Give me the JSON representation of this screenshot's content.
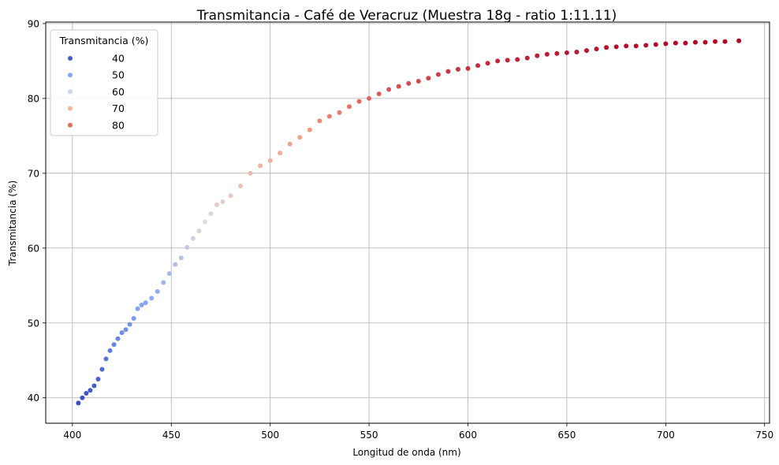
{
  "chart_data": {
    "type": "scatter",
    "title": "Transmitancia - Café de Veracruz (Muestra 18g - ratio 1:11.11)",
    "xlabel": "Longitud de onda (nm)",
    "ylabel": "Transmitancia (%)",
    "xlim": [
      386.5,
      752.5
    ],
    "ylim": [
      36.6,
      90.2
    ],
    "xticks": [
      400,
      450,
      500,
      550,
      600,
      650,
      700,
      750
    ],
    "yticks": [
      40,
      50,
      60,
      70,
      80,
      90
    ],
    "grid": true,
    "colormap": "coolwarm",
    "color_range": [
      39.3,
      87.7
    ],
    "legend": {
      "title": "Transmitancia (%)",
      "position": "upper-left",
      "entries": [
        {
          "label": "40",
          "value": 40,
          "color": "#4a5fcf"
        },
        {
          "label": "50",
          "value": 50,
          "color": "#84a5f4"
        },
        {
          "label": "60",
          "value": 60,
          "color": "#c8d6e8"
        },
        {
          "label": "70",
          "value": 70,
          "color": "#f3b697"
        },
        {
          "label": "80",
          "value": 80,
          "color": "#dd6f54"
        }
      ]
    },
    "series": [
      {
        "x": [
          403,
          405,
          407,
          409,
          411,
          413,
          415,
          417,
          419,
          421,
          423,
          425,
          427,
          429,
          431,
          433,
          435,
          437,
          440,
          443,
          446,
          449,
          452,
          455,
          458,
          461,
          464,
          467,
          470,
          473,
          476,
          480,
          485,
          490,
          495,
          500,
          505,
          510,
          515,
          520,
          525,
          530,
          535,
          540,
          545,
          550,
          555,
          560,
          565,
          570,
          575,
          580,
          585,
          590,
          595,
          600,
          605,
          610,
          615,
          620,
          625,
          630,
          635,
          640,
          645,
          650,
          655,
          660,
          665,
          670,
          675,
          680,
          685,
          690,
          695,
          700,
          705,
          710,
          715,
          720,
          725,
          730,
          737
        ],
        "y": [
          39.3,
          40.0,
          40.6,
          41.0,
          41.6,
          42.5,
          43.8,
          45.2,
          46.3,
          47.1,
          47.9,
          48.7,
          49.1,
          49.8,
          50.6,
          51.9,
          52.4,
          52.7,
          53.3,
          54.2,
          55.4,
          56.6,
          57.8,
          58.7,
          60.1,
          61.3,
          62.3,
          63.5,
          64.6,
          65.8,
          66.2,
          67.0,
          68.3,
          70.0,
          71.0,
          71.7,
          72.7,
          73.9,
          74.8,
          75.8,
          77.0,
          77.6,
          78.1,
          78.9,
          79.6,
          80.0,
          80.6,
          81.2,
          81.6,
          82.0,
          82.3,
          82.7,
          83.2,
          83.6,
          83.9,
          84.0,
          84.4,
          84.7,
          85.0,
          85.1,
          85.2,
          85.4,
          85.7,
          85.9,
          86.0,
          86.1,
          86.2,
          86.4,
          86.6,
          86.8,
          86.9,
          87.0,
          87.0,
          87.1,
          87.2,
          87.3,
          87.4,
          87.4,
          87.5,
          87.5,
          87.6,
          87.6,
          87.7
        ]
      }
    ]
  }
}
